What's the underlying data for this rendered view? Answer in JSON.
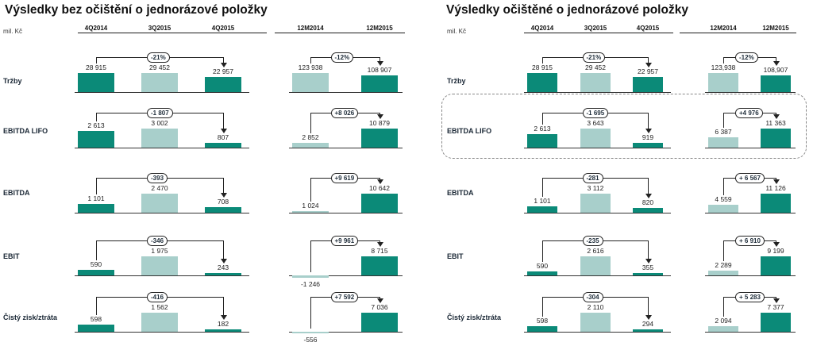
{
  "panels": [
    {
      "title": "Výsledky bez očištění o jednorázové položky",
      "unit": "mil. Kč",
      "quarters": [
        "4Q2014",
        "3Q2015",
        "4Q2015"
      ],
      "years": [
        "12M2014",
        "12M2015"
      ],
      "rows": [
        {
          "label": "Tržby",
          "q": [
            28915,
            29452,
            22957
          ],
          "q_labels": [
            "28 915",
            "29 452",
            "22 957"
          ],
          "q_delta": "-21%",
          "y": [
            123938,
            108907
          ],
          "y_labels": [
            "123 938",
            "108 907"
          ],
          "y_delta": "-12%"
        },
        {
          "label": "EBITDA LIFO",
          "q": [
            2613,
            3002,
            807
          ],
          "q_labels": [
            "2 613",
            "3 002",
            "807"
          ],
          "q_delta": "-1 807",
          "y": [
            2852,
            10879
          ],
          "y_labels": [
            "2 852",
            "10 879"
          ],
          "y_delta": "+8 026"
        },
        {
          "label": "EBITDA",
          "q": [
            1101,
            2470,
            708
          ],
          "q_labels": [
            "1 101",
            "2 470",
            "708"
          ],
          "q_delta": "-393",
          "y": [
            1024,
            10642
          ],
          "y_labels": [
            "1 024",
            "10 642"
          ],
          "y_delta": "+9 619"
        },
        {
          "label": "EBIT",
          "q": [
            590,
            1975,
            243
          ],
          "q_labels": [
            "590",
            "1 975",
            "243"
          ],
          "q_delta": "-346",
          "y": [
            -1246,
            8715
          ],
          "y_labels": [
            "-1 246",
            "8 715"
          ],
          "y_delta": "+9 961"
        },
        {
          "label": "Čistý zisk/ztráta",
          "q": [
            598,
            1562,
            182
          ],
          "q_labels": [
            "598",
            "1 562",
            "182"
          ],
          "q_delta": "-416",
          "y": [
            -556,
            7036
          ],
          "y_labels": [
            "-556",
            "7 036"
          ],
          "y_delta": "+7 592"
        }
      ]
    },
    {
      "title": "Výsledky očištěné o jednorázové položky",
      "unit": "mil. Kč",
      "quarters": [
        "4Q2014",
        "3Q2015",
        "4Q2015"
      ],
      "years": [
        "12M2014",
        "12M2015"
      ],
      "rows": [
        {
          "label": "Tržby",
          "q": [
            28915,
            29452,
            22957
          ],
          "q_labels": [
            "28 915",
            "29 452",
            "22 957"
          ],
          "q_delta": "-21%",
          "y": [
            123938,
            108907
          ],
          "y_labels": [
            "123,938",
            "108,907"
          ],
          "y_delta": "-12%"
        },
        {
          "label": "EBITDA LIFO",
          "q": [
            2613,
            3643,
            919
          ],
          "q_labels": [
            "2 613",
            "3 643",
            "919"
          ],
          "q_delta": "-1 695",
          "y": [
            6387,
            11363
          ],
          "y_labels": [
            "6 387",
            "11 363"
          ],
          "y_delta": "+4 976"
        },
        {
          "label": "EBITDA",
          "q": [
            1101,
            3112,
            820
          ],
          "q_labels": [
            "1 101",
            "3 112",
            "820"
          ],
          "q_delta": "-281",
          "y": [
            4559,
            11126
          ],
          "y_labels": [
            "4 559",
            "11 126"
          ],
          "y_delta": "+ 6 567"
        },
        {
          "label": "EBIT",
          "q": [
            590,
            2616,
            355
          ],
          "q_labels": [
            "590",
            "2 616",
            "355"
          ],
          "q_delta": "-235",
          "y": [
            2289,
            9199
          ],
          "y_labels": [
            "2 289",
            "9 199"
          ],
          "y_delta": "+ 6 910"
        },
        {
          "label": "Čistý zisk/ztráta",
          "q": [
            598,
            2110,
            294
          ],
          "q_labels": [
            "598",
            "2 110",
            "294"
          ],
          "q_delta": "-304",
          "y": [
            2094,
            7377
          ],
          "y_labels": [
            "2 094",
            "7 377"
          ],
          "y_delta": "+ 5 283"
        }
      ]
    }
  ],
  "colors": {
    "dark": "#0b8a78",
    "light": "#a8cfcb",
    "text": "#1f2d3a"
  },
  "chart_data": [
    {
      "type": "bar",
      "title": "Výsledky bez očištění o jednorázové položky",
      "unit": "mil. Kč",
      "categories": [
        "4Q2014",
        "3Q2015",
        "4Q2015",
        "12M2014",
        "12M2015"
      ],
      "series": [
        {
          "name": "Tržby",
          "values": [
            28915,
            29452,
            22957,
            123938,
            108907
          ]
        },
        {
          "name": "EBITDA LIFO",
          "values": [
            2613,
            3002,
            807,
            2852,
            10879
          ]
        },
        {
          "name": "EBITDA",
          "values": [
            1101,
            2470,
            708,
            1024,
            10642
          ]
        },
        {
          "name": "EBIT",
          "values": [
            590,
            1975,
            243,
            -1246,
            8715
          ]
        },
        {
          "name": "Čistý zisk/ztráta",
          "values": [
            598,
            1562,
            182,
            -556,
            7036
          ]
        }
      ],
      "annotations": {
        "quarter_change": [
          "-21%",
          "-1 807",
          "-393",
          "-346",
          "-416"
        ],
        "year_change": [
          "-12%",
          "+8 026",
          "+9 619",
          "+9 961",
          "+7 592"
        ]
      }
    },
    {
      "type": "bar",
      "title": "Výsledky očištěné o jednorázové položky",
      "unit": "mil. Kč",
      "categories": [
        "4Q2014",
        "3Q2015",
        "4Q2015",
        "12M2014",
        "12M2015"
      ],
      "series": [
        {
          "name": "Tržby",
          "values": [
            28915,
            29452,
            22957,
            123938,
            108907
          ]
        },
        {
          "name": "EBITDA LIFO",
          "values": [
            2613,
            3643,
            919,
            6387,
            11363
          ]
        },
        {
          "name": "EBITDA",
          "values": [
            1101,
            3112,
            820,
            4559,
            11126
          ]
        },
        {
          "name": "EBIT",
          "values": [
            590,
            2616,
            355,
            2289,
            9199
          ]
        },
        {
          "name": "Čistý zisk/ztráta",
          "values": [
            598,
            2110,
            294,
            2094,
            7377
          ]
        }
      ],
      "annotations": {
        "quarter_change": [
          "-21%",
          "-1 695",
          "-281",
          "-235",
          "-304"
        ],
        "year_change": [
          "-12%",
          "+4 976",
          "+ 6 567",
          "+ 6 910",
          "+ 5 283"
        ]
      }
    }
  ]
}
